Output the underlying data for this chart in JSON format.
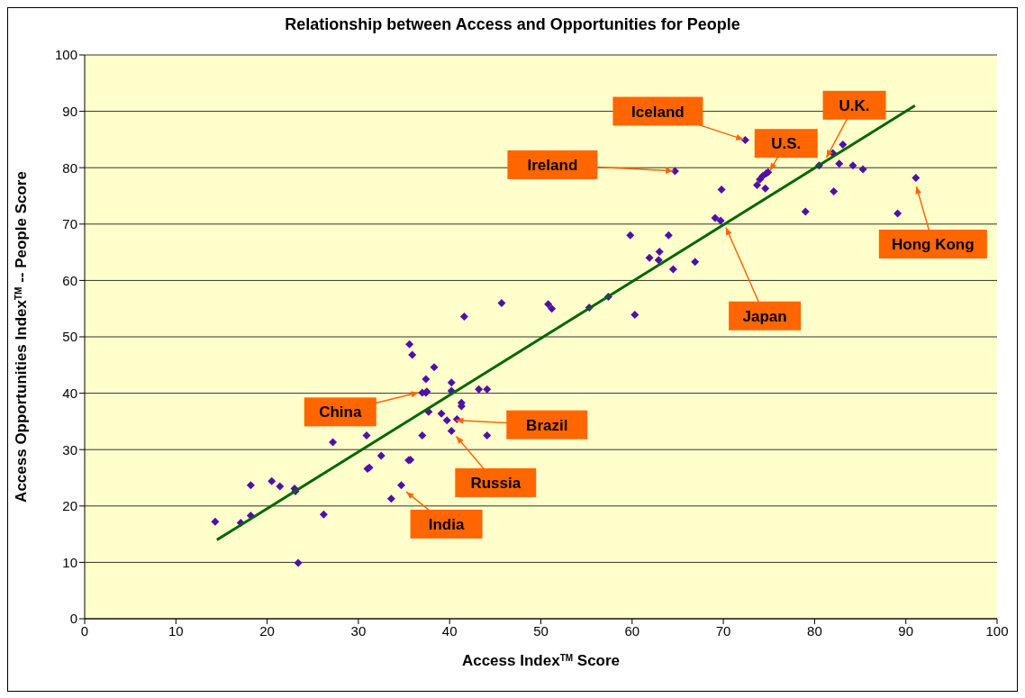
{
  "chart_data": {
    "type": "scatter",
    "title": "Relationship between Access and Opportunities for People",
    "xlabel": "Access Index$^{TM}$ Score",
    "ylabel": "Access Opportunities Index$^{TM}$ -- People Score",
    "xlim": [
      0,
      100
    ],
    "xticks": [
      0,
      10,
      20,
      30,
      40,
      50,
      60,
      70,
      80,
      90,
      100
    ],
    "ylim": [
      0,
      100
    ],
    "yticks": [
      0,
      10,
      20,
      30,
      40,
      50,
      60,
      70,
      80,
      90,
      100
    ],
    "grid": "y",
    "legend": false,
    "marker": "diamond",
    "series": [
      {
        "color": "#5010a8",
        "x": [
          14.3,
          17.1,
          18.2,
          18.2,
          20.5,
          21.4,
          23.0,
          23.1,
          23.4,
          26.2,
          27.2,
          30.9,
          31.0,
          31.2,
          32.5,
          33.6,
          34.7,
          35.5,
          35.7,
          35.6,
          35.9,
          37.0,
          37.0,
          37.4,
          37.4,
          38.3,
          37.7,
          37.5,
          39.1,
          39.7,
          40.2,
          40.2,
          40.2,
          40.8,
          41.3,
          41.3,
          41.6,
          43.2,
          44.1,
          44.1,
          45.7,
          50.8,
          51.2,
          55.3,
          57.4,
          59.8,
          64.0,
          63.0,
          61.9,
          62.9,
          64.5,
          66.9,
          60.3,
          72.4,
          64.7,
          69.8,
          73.7,
          74.0,
          74.3,
          74.7,
          74.9,
          74.6,
          69.1,
          69.7,
          79.0,
          80.5,
          82.0,
          83.1,
          82.7,
          84.2,
          85.3,
          82.1,
          91.1,
          89.1
        ],
        "values": [
          17.2,
          17.0,
          18.3,
          23.7,
          24.4,
          23.5,
          23.1,
          22.6,
          9.9,
          18.5,
          31.3,
          32.5,
          26.6,
          26.8,
          28.9,
          21.3,
          23.7,
          28.1,
          28.2,
          48.7,
          46.8,
          32.5,
          40.1,
          40.1,
          42.5,
          44.6,
          36.7,
          40.3,
          36.4,
          35.2,
          33.3,
          41.9,
          40.4,
          35.4,
          38.3,
          37.7,
          53.6,
          40.7,
          32.5,
          40.7,
          56.0,
          55.8,
          55.0,
          55.2,
          57.1,
          68.0,
          68.0,
          65.1,
          64.0,
          63.6,
          62.0,
          63.3,
          53.9,
          84.9,
          79.4,
          76.1,
          76.9,
          77.9,
          78.5,
          79.0,
          79.2,
          76.3,
          71.1,
          70.6,
          72.2,
          80.4,
          82.6,
          84.1,
          80.7,
          80.4,
          79.7,
          75.8,
          78.2,
          71.9
        ]
      },
      {
        "type": "line",
        "color": "#006600",
        "marker": "none",
        "x": [
          14.5,
          91
        ],
        "values": [
          14,
          91
        ]
      }
    ],
    "annotations": [
      {
        "text": "Iceland",
        "x": 72.4,
        "y": 84.9
      },
      {
        "text": "U.S.",
        "x": 75,
        "y": 79.2
      },
      {
        "text": "U.K.",
        "x": 81.2,
        "y": 81.5
      },
      {
        "text": "Ireland",
        "x": 64.7,
        "y": 79.4
      },
      {
        "text": "Hong Kong",
        "x": 91.1,
        "y": 77
      },
      {
        "text": "Japan",
        "x": 70.2,
        "y": 69.7
      },
      {
        "text": "China",
        "x": 36.8,
        "y": 40.2
      },
      {
        "text": "Brazil",
        "x": 40.5,
        "y": 35.2
      },
      {
        "text": "Russia",
        "x": 40.6,
        "y": 32.6
      },
      {
        "text": "India",
        "x": 35.1,
        "y": 22.7
      }
    ]
  }
}
